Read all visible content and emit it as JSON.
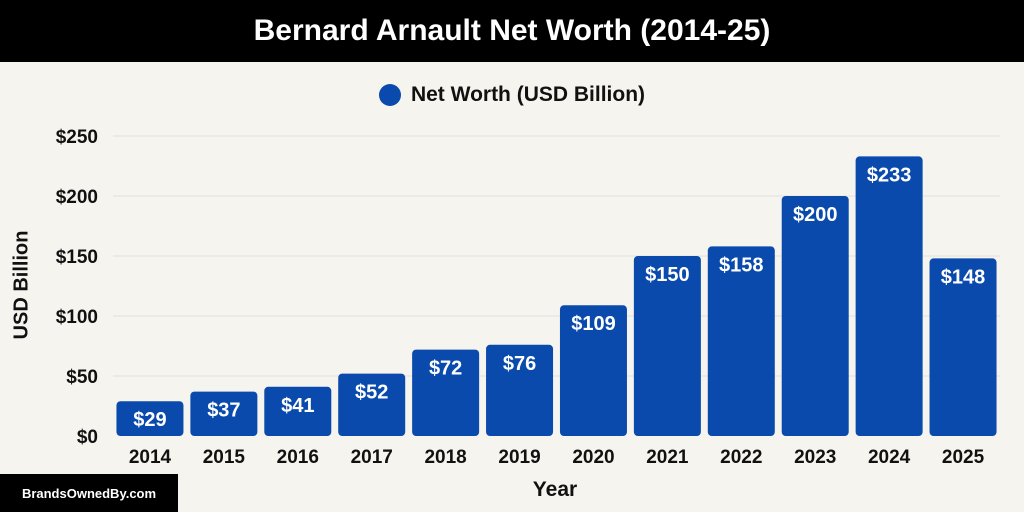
{
  "header": {
    "title": "Bernard Arnault Net Worth (2014-25)"
  },
  "footer": {
    "badge": "BrandsOwnedBy.com"
  },
  "chart_data": {
    "type": "bar",
    "title": "Bernard Arnault Net Worth (2014-25)",
    "xlabel": "Year",
    "ylabel": "USD Billion",
    "ylim": [
      0,
      250
    ],
    "yticks": [
      0,
      50,
      100,
      150,
      200,
      250
    ],
    "ytick_labels": [
      "$0",
      "$50",
      "$100",
      "$150",
      "$200",
      "$250"
    ],
    "grid": true,
    "legend_position": "top-center",
    "categories": [
      "2014",
      "2015",
      "2016",
      "2017",
      "2018",
      "2019",
      "2020",
      "2021",
      "2022",
      "2023",
      "2024",
      "2025"
    ],
    "series": [
      {
        "name": "Net Worth (USD Billion)",
        "color": "#0a4aad",
        "values": [
          29,
          37,
          41,
          52,
          72,
          76,
          109,
          150,
          158,
          200,
          233,
          148
        ],
        "data_labels": [
          "$29",
          "$37",
          "$41",
          "$52",
          "$72",
          "$76",
          "$109",
          "$150",
          "$158",
          "$200",
          "$233",
          "$148"
        ]
      }
    ]
  }
}
